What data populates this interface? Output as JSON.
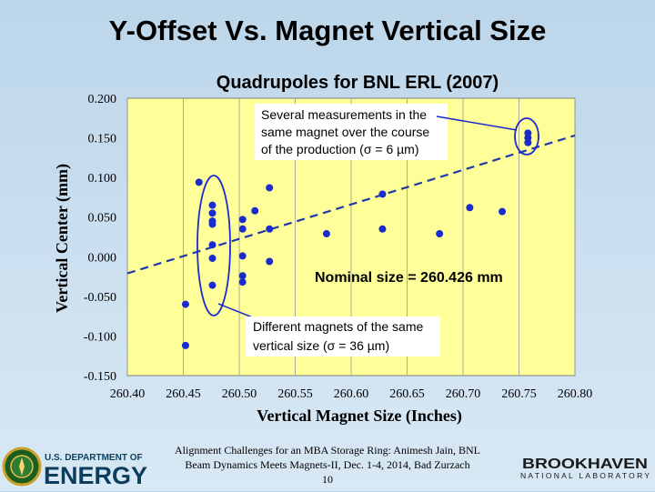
{
  "slide": {
    "title": "Y-Offset Vs. Magnet Vertical Size",
    "footer_line1": "Alignment Challenges for an MBA Storage Ring: Animesh Jain, BNL",
    "footer_line2": "Beam Dynamics Meets Magnets-II, Dec. 1-4, 2014, Bad Zurzach",
    "page_number": "10",
    "doe_logo_small": "U.S. DEPARTMENT OF",
    "doe_logo_big": "ENERGY",
    "bnl_logo_big": "BROOKHAVEN",
    "bnl_logo_small": "NATIONAL LABORATORY"
  },
  "chart_data": {
    "type": "scatter",
    "subtitle": "Quadrupoles for BNL ERL (2007)",
    "xlabel": "Vertical Magnet Size (Inches)",
    "ylabel": "Vertical Center (mm)",
    "xlim": [
      260.4,
      260.8
    ],
    "ylim": [
      -0.15,
      0.2
    ],
    "x_ticks": [
      260.4,
      260.45,
      260.5,
      260.55,
      260.6,
      260.65,
      260.7,
      260.75,
      260.8
    ],
    "x_tick_labels": [
      "260.40",
      "260.45",
      "260.50",
      "260.55",
      "260.60",
      "260.65",
      "260.70",
      "260.75",
      "260.80"
    ],
    "y_ticks": [
      0.2,
      0.15,
      0.1,
      0.05,
      0.0,
      -0.05,
      -0.1,
      -0.15
    ],
    "y_tick_labels": [
      "0.200",
      "0.150",
      "0.100",
      "0.050",
      "0.000",
      "-0.050",
      "-0.100",
      "-0.150"
    ],
    "grid": {
      "x": true,
      "y": false
    },
    "points": [
      {
        "x": 260.452,
        "y": -0.06
      },
      {
        "x": 260.452,
        "y": -0.112
      },
      {
        "x": 260.464,
        "y": 0.094
      },
      {
        "x": 260.476,
        "y": 0.065
      },
      {
        "x": 260.476,
        "y": 0.055
      },
      {
        "x": 260.476,
        "y": 0.045
      },
      {
        "x": 260.476,
        "y": 0.041
      },
      {
        "x": 260.476,
        "y": 0.015
      },
      {
        "x": 260.476,
        "y": -0.002
      },
      {
        "x": 260.476,
        "y": -0.036
      },
      {
        "x": 260.503,
        "y": 0.047
      },
      {
        "x": 260.503,
        "y": 0.035
      },
      {
        "x": 260.503,
        "y": 0.001
      },
      {
        "x": 260.503,
        "y": -0.024
      },
      {
        "x": 260.503,
        "y": -0.032
      },
      {
        "x": 260.514,
        "y": 0.058
      },
      {
        "x": 260.527,
        "y": 0.087
      },
      {
        "x": 260.527,
        "y": 0.035
      },
      {
        "x": 260.527,
        "y": -0.006
      },
      {
        "x": 260.578,
        "y": 0.029
      },
      {
        "x": 260.628,
        "y": 0.079
      },
      {
        "x": 260.628,
        "y": 0.035
      },
      {
        "x": 260.679,
        "y": 0.029
      },
      {
        "x": 260.706,
        "y": 0.062
      },
      {
        "x": 260.735,
        "y": 0.057
      },
      {
        "x": 260.758,
        "y": 0.156
      },
      {
        "x": 260.758,
        "y": 0.15
      },
      {
        "x": 260.758,
        "y": 0.144
      }
    ],
    "fit_line": {
      "x": [
        260.4,
        260.8
      ],
      "y": [
        -0.021,
        0.153
      ],
      "style": "dashed",
      "color": "#1f3aa8"
    },
    "annotations": {
      "repeat_note": [
        "Several measurements in the",
        "same magnet over the course",
        "of the production (σ = 6 µm)"
      ],
      "nominal": "Nominal size = 260.426 mm",
      "different_note": [
        "Different magnets of the same",
        "vertical size (σ = 36 µm)"
      ]
    },
    "colors": {
      "plot_bg": "#ffff99",
      "marker": "#1a2bd0",
      "ellipse": "#1a2bd0",
      "text": "#000000"
    }
  }
}
